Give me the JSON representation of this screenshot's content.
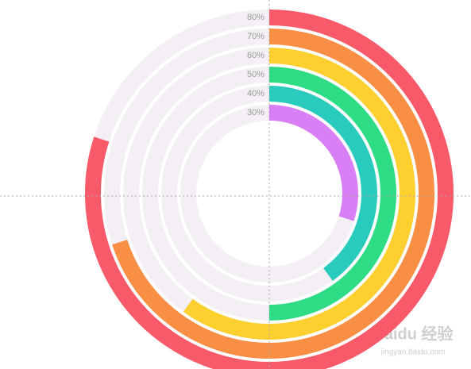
{
  "chart_data": {
    "type": "radialBar",
    "values": [
      80,
      70,
      60,
      50,
      40,
      30
    ],
    "value_labels": [
      "80%",
      "70%",
      "60%",
      "50%",
      "40%",
      "30%"
    ],
    "colors": [
      "#f95a6a",
      "#f98e45",
      "#fdd030",
      "#2ddc84",
      "#29cbbc",
      "#d97ff5"
    ],
    "ylim": [
      0,
      100
    ],
    "track_color": "#f3eff4",
    "watermark": {
      "brand": "Baidu 经验",
      "url": "jingyan.baidu.com"
    }
  }
}
